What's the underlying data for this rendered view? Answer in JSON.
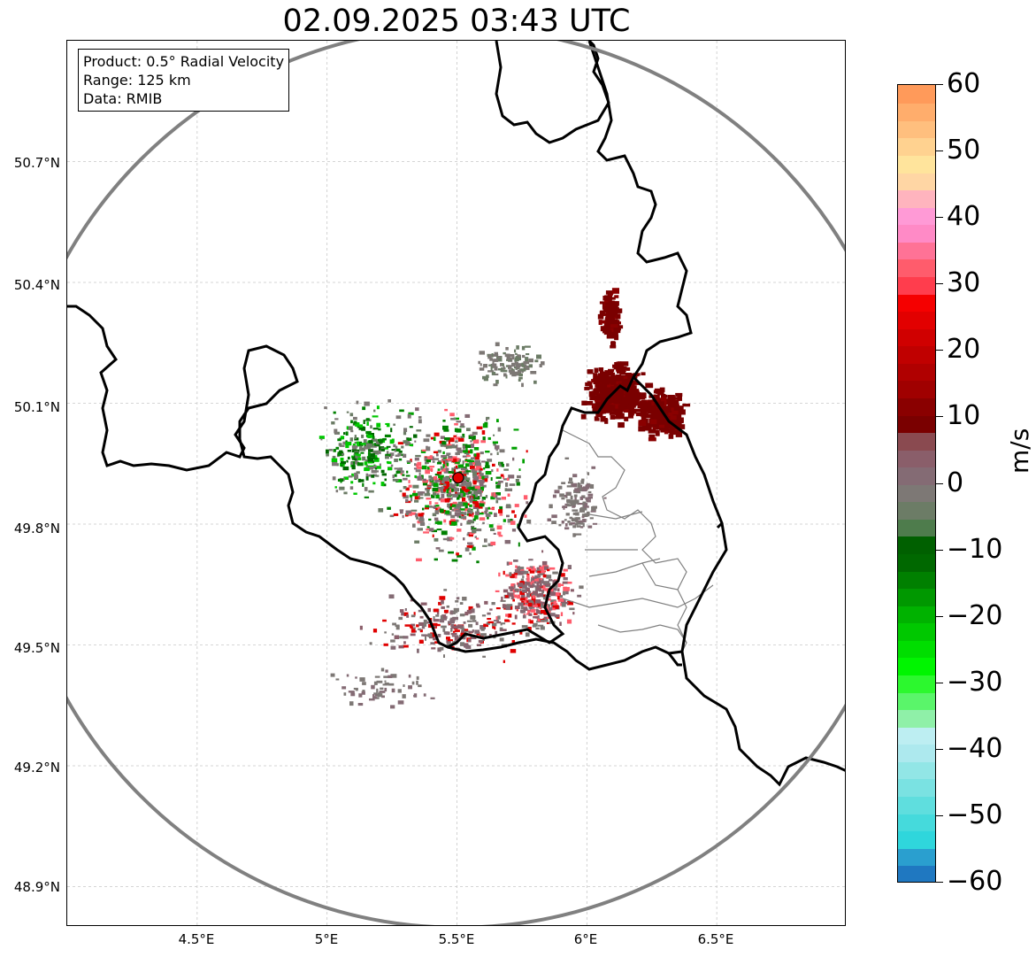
{
  "title": "02.09.2025 03:43 UTC",
  "info_box": {
    "product": "Product: 0.5° Radial Velocity",
    "range": "Range: 125 km",
    "data": "Data: RMIB"
  },
  "lat_ticks": [
    "50.7°N",
    "50.4°N",
    "50.1°N",
    "49.8°N",
    "49.5°N",
    "49.2°N",
    "48.9°N"
  ],
  "lon_ticks": [
    "4.5°E",
    "5°E",
    "5.5°E",
    "6°E",
    "6.5°E"
  ],
  "map": {
    "lon_range": [
      4.0,
      7.0
    ],
    "lat_range": [
      48.8,
      51.0
    ],
    "radar_site": {
      "lon": 5.505,
      "lat": 49.915
    },
    "range_ring_color": "#808080",
    "radar_marker_color": "#e00000"
  },
  "colorbar": {
    "label": "m/s",
    "ticks": [
      "60",
      "50",
      "40",
      "30",
      "20",
      "10",
      "0",
      "−10",
      "−20",
      "−30",
      "−40",
      "−50",
      "−60"
    ],
    "min": -60,
    "max": 60,
    "colors": [
      "#1f78c1",
      "#2a9fcf",
      "#2fd6dc",
      "#45dadc",
      "#5fdede",
      "#7ae2e2",
      "#92e6e6",
      "#ade9ee",
      "#bdeef2",
      "#8ff0a8",
      "#5af56a",
      "#2cf82e",
      "#00f500",
      "#00de00",
      "#00c800",
      "#00b200",
      "#009800",
      "#008000",
      "#006800",
      "#006000",
      "#4e7c4c",
      "#6c7c66",
      "#7d7875",
      "#846b74",
      "#8a5e6a",
      "#8a4a50",
      "#7a0000",
      "#8a0000",
      "#a00000",
      "#b00000",
      "#c00000",
      "#d00000",
      "#e20000",
      "#f50000",
      "#ff3d4d",
      "#ff5c6c",
      "#ff7296",
      "#ff8ac6",
      "#ff9ad6",
      "#ffb4be",
      "#ffd6a4",
      "#ffe49c",
      "#ffd290",
      "#ffbf7e",
      "#ffad6c",
      "#ff9a5a"
    ]
  },
  "echo_clusters": [
    {
      "name": "central",
      "lon": 5.5,
      "lat": 49.9,
      "rx": 0.32,
      "ry": 0.22,
      "n": 700,
      "palette": [
        "#7d7875",
        "#7d7875",
        "#846b74",
        "#6c7c66",
        "#00a000",
        "#008000",
        "#e00000",
        "#ff5c6c"
      ]
    },
    {
      "name": "west-green",
      "lon": 5.15,
      "lat": 49.98,
      "rx": 0.22,
      "ry": 0.15,
      "n": 260,
      "palette": [
        "#008000",
        "#006800",
        "#00c800",
        "#7d7875",
        "#6c7c66"
      ]
    },
    {
      "name": "south-east",
      "lon": 5.8,
      "lat": 49.63,
      "rx": 0.2,
      "ry": 0.12,
      "n": 340,
      "palette": [
        "#846b74",
        "#8a5e6a",
        "#7d7875",
        "#ff5c6c",
        "#e00000"
      ]
    },
    {
      "name": "south",
      "lon": 5.45,
      "lat": 49.55,
      "rx": 0.35,
      "ry": 0.1,
      "n": 220,
      "palette": [
        "#7d7875",
        "#846b74",
        "#8a5e6a",
        "#e00000"
      ]
    },
    {
      "name": "north",
      "lon": 5.7,
      "lat": 50.2,
      "rx": 0.18,
      "ry": 0.06,
      "n": 110,
      "palette": [
        "#7d7875",
        "#6c7c66"
      ]
    },
    {
      "name": "east-inland",
      "lon": 5.95,
      "lat": 49.85,
      "rx": 0.12,
      "ry": 0.12,
      "n": 120,
      "palette": [
        "#7d7875",
        "#846b74"
      ]
    },
    {
      "name": "far-south",
      "lon": 5.2,
      "lat": 49.4,
      "rx": 0.25,
      "ry": 0.08,
      "n": 60,
      "palette": [
        "#7d7875",
        "#846b74"
      ]
    }
  ],
  "storm_cells": [
    {
      "lon": 6.1,
      "lat": 50.13,
      "rx": 0.14,
      "ry": 0.09,
      "n": 420,
      "color": "#7a0000"
    },
    {
      "lon": 6.28,
      "lat": 50.08,
      "rx": 0.11,
      "ry": 0.08,
      "n": 260,
      "color": "#7a0000"
    },
    {
      "lon": 6.08,
      "lat": 50.32,
      "rx": 0.04,
      "ry": 0.08,
      "n": 130,
      "color": "#7a0000"
    }
  ]
}
